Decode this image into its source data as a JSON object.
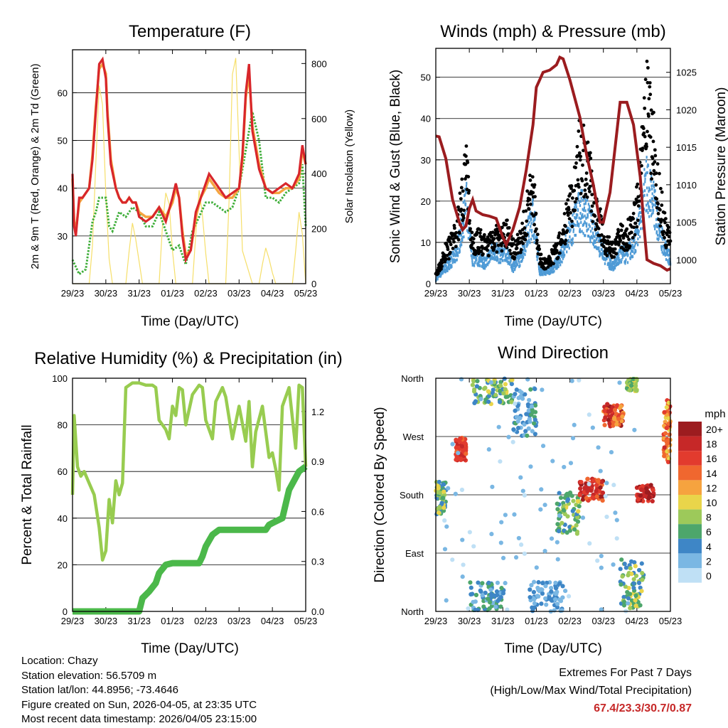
{
  "days": [
    "29/23",
    "30/23",
    "31/23",
    "01/23",
    "02/23",
    "03/23",
    "04/23",
    "05/23"
  ],
  "colors": {
    "t2m": "#d8262b",
    "t9m": "#f5a540",
    "td": "#3fae3a",
    "solar": "#f6df6a",
    "gust": "#000000",
    "wind": "#4f9bd6",
    "pressure": "#9b1c1f",
    "rh": "#98cc50",
    "rain": "#4bb84a",
    "grid": "#000000",
    "extreme": "#c62828"
  },
  "chart_data": [
    {
      "id": "temperature",
      "type": "line",
      "title": "Temperature (F)",
      "xlabel": "Time (Day/UTC)",
      "ylabel": "2m & 9m T (Red, Orange) & 2m Td (Green)",
      "y2label": "Solar Insolation (Yellow)",
      "xlim": [
        0,
        7
      ],
      "ylim": [
        20,
        69
      ],
      "y2lim": [
        0,
        850
      ],
      "yticks": [
        30,
        40,
        50,
        60
      ],
      "y2ticks": [
        0,
        200,
        400,
        600,
        800
      ],
      "series": [
        {
          "name": "2m T",
          "x": [
            0,
            0.05,
            0.1,
            0.2,
            0.3,
            0.5,
            0.6,
            0.7,
            0.8,
            0.9,
            1.0,
            1.05,
            1.15,
            1.3,
            1.4,
            1.5,
            1.6,
            1.7,
            1.8,
            1.9,
            2.0,
            2.2,
            2.4,
            2.6,
            2.8,
            3.0,
            3.1,
            3.2,
            3.3,
            3.4,
            3.55,
            3.7,
            3.85,
            4.0,
            4.1,
            4.2,
            4.4,
            4.6,
            4.8,
            5.0,
            5.1,
            5.2,
            5.3,
            5.4,
            5.6,
            5.8,
            6.0,
            6.2,
            6.4,
            6.6,
            6.8,
            6.9,
            7.0
          ],
          "y": [
            43,
            32,
            30,
            38,
            38,
            40,
            46,
            56,
            66,
            67,
            63,
            55,
            45,
            40,
            38,
            37,
            37,
            38,
            37,
            37,
            34,
            33,
            34,
            36,
            33,
            38,
            41,
            38,
            30,
            25,
            27,
            35,
            38,
            41,
            43,
            42,
            40,
            38,
            39,
            40,
            47,
            60,
            66,
            52,
            44,
            40,
            39,
            40,
            41,
            40,
            43,
            49,
            45
          ]
        },
        {
          "name": "9m T",
          "x": [
            0,
            0.05,
            0.1,
            0.2,
            0.3,
            0.5,
            0.6,
            0.7,
            0.8,
            0.9,
            1.0,
            1.05,
            1.15,
            1.3,
            1.4,
            1.5,
            1.6,
            1.7,
            1.8,
            1.9,
            2.0,
            2.2,
            2.4,
            2.6,
            2.8,
            3.0,
            3.1,
            3.2,
            3.3,
            3.4,
            3.55,
            3.7,
            3.85,
            4.0,
            4.1,
            4.2,
            4.4,
            4.6,
            4.8,
            5.0,
            5.1,
            5.2,
            5.3,
            5.4,
            5.6,
            5.8,
            6.0,
            6.2,
            6.4,
            6.6,
            6.8,
            6.9,
            7.0
          ],
          "y": [
            42,
            33,
            31,
            37,
            38,
            40,
            47,
            57,
            65,
            66,
            64,
            56,
            46,
            40,
            38,
            37,
            37,
            38,
            37,
            37,
            35,
            34,
            34,
            36,
            34,
            37,
            40,
            38,
            31,
            26,
            27,
            34,
            38,
            40,
            42,
            41,
            39,
            38,
            38,
            40,
            46,
            59,
            64,
            53,
            45,
            40,
            39,
            39,
            40,
            40,
            42,
            48,
            45
          ]
        },
        {
          "name": "2m Td",
          "x": [
            0,
            0.2,
            0.4,
            0.5,
            0.6,
            0.7,
            0.8,
            1.0,
            1.1,
            1.2,
            1.4,
            1.6,
            1.8,
            2.0,
            2.2,
            2.4,
            2.6,
            2.8,
            3.0,
            3.2,
            3.4,
            3.6,
            3.8,
            4.0,
            4.2,
            4.4,
            4.6,
            4.8,
            5.0,
            5.2,
            5.3,
            5.4,
            5.6,
            5.8,
            6.0,
            6.2,
            6.4,
            6.6,
            6.8,
            6.9,
            7.0
          ],
          "y": [
            25,
            22,
            23,
            28,
            33,
            35,
            38,
            38,
            32,
            31,
            35,
            34,
            36,
            35,
            32,
            32,
            35,
            31,
            27,
            28,
            24,
            31,
            34,
            37,
            37,
            36,
            35,
            36,
            40,
            48,
            52,
            56,
            50,
            38,
            38,
            37,
            39,
            40,
            41,
            45,
            32
          ]
        },
        {
          "name": "Solar",
          "x": [
            0,
            0.5,
            0.6,
            0.7,
            0.8,
            0.9,
            1.0,
            1.1,
            1.2,
            1.4,
            1.6,
            1.7,
            1.8,
            1.9,
            2.0,
            2.1,
            2.4,
            2.6,
            2.7,
            2.8,
            2.9,
            3.0,
            3.1,
            3.5,
            3.6,
            3.7,
            3.8,
            3.9,
            4.0,
            4.1,
            4.5,
            4.6,
            4.7,
            4.8,
            4.9,
            5.0,
            5.1,
            5.4,
            5.5,
            5.6,
            5.7,
            5.8,
            5.9,
            6.0,
            6.1,
            6.5,
            6.6,
            6.7,
            6.8,
            6.9,
            7.0
          ],
          "y": [
            0,
            0,
            140,
            440,
            720,
            650,
            320,
            90,
            0,
            0,
            0,
            120,
            220,
            160,
            80,
            0,
            0,
            0,
            210,
            330,
            290,
            120,
            0,
            0,
            0,
            180,
            340,
            250,
            110,
            0,
            0,
            0,
            300,
            760,
            820,
            480,
            120,
            0,
            0,
            0,
            70,
            130,
            90,
            40,
            0,
            0,
            0,
            120,
            260,
            180,
            0
          ]
        }
      ]
    },
    {
      "id": "winds",
      "type": "scatter",
      "title": "Winds (mph) & Pressure (mb)",
      "xlabel": "Time (Day/UTC)",
      "ylabel": "Sonic Wind & Gust (Blue, Black)",
      "y2label": "Station Pressure (Maroon)",
      "xlim": [
        0,
        7
      ],
      "ylim": [
        0,
        57
      ],
      "y2lim": [
        996.8,
        1028.2
      ],
      "yticks": [
        0,
        10,
        20,
        30,
        40,
        50
      ],
      "y2ticks": [
        1000,
        1005,
        1010,
        1015,
        1020,
        1025
      ],
      "wind_x": [
        0,
        0.3,
        0.6,
        0.8,
        0.9,
        1.0,
        1.1,
        1.3,
        1.5,
        1.7,
        1.9,
        2.1,
        2.3,
        2.5,
        2.7,
        2.9,
        3.1,
        3.3,
        3.5,
        3.7,
        3.9,
        4.1,
        4.3,
        4.5,
        4.7,
        4.9,
        5.1,
        5.3,
        5.5,
        5.7,
        5.9,
        6.1,
        6.3,
        6.5,
        6.7,
        6.9,
        7.0
      ],
      "wind_y": [
        1,
        4,
        7,
        14,
        20,
        12,
        6,
        6,
        5,
        8,
        7,
        8,
        4,
        6,
        11,
        17,
        3,
        3,
        4,
        6,
        10,
        14,
        18,
        16,
        13,
        9,
        6,
        4,
        7,
        7,
        9,
        16,
        25,
        19,
        12,
        7,
        6
      ],
      "gust_y": [
        2,
        8,
        12,
        22,
        30,
        18,
        10,
        11,
        9,
        12,
        11,
        13,
        9,
        10,
        17,
        25,
        6,
        5,
        7,
        10,
        16,
        22,
        34,
        30,
        22,
        15,
        10,
        8,
        12,
        12,
        15,
        26,
        45,
        34,
        20,
        12,
        10
      ],
      "pressure_x": [
        0,
        0.1,
        0.3,
        0.5,
        0.7,
        0.8,
        0.9,
        1.0,
        1.1,
        1.2,
        1.4,
        1.6,
        1.8,
        2.0,
        2.1,
        2.3,
        2.5,
        2.7,
        2.9,
        3.0,
        3.2,
        3.4,
        3.6,
        3.7,
        3.8,
        4.0,
        4.3,
        4.5,
        4.7,
        4.9,
        5.0,
        5.2,
        5.4,
        5.5,
        5.7,
        5.9,
        6.1,
        6.2,
        6.3,
        6.5,
        6.7,
        6.9,
        7.0
      ],
      "pressure_y": [
        1016.5,
        1016.4,
        1013.5,
        1008,
        1005,
        1004,
        1004.5,
        1006.8,
        1008,
        1006.5,
        1006,
        1005.8,
        1005.5,
        1003,
        1002,
        1004,
        1007,
        1012,
        1018,
        1023,
        1025,
        1025.3,
        1026,
        1027,
        1026.8,
        1024,
        1019,
        1014,
        1010,
        1005,
        1005,
        1009,
        1017,
        1021,
        1021,
        1018,
        1011,
        1005,
        1000,
        999.5,
        999.2,
        998.6,
        998.8
      ]
    },
    {
      "id": "humidity",
      "type": "line",
      "title": "Relative Humidity (%) & Precipitation (in)",
      "xlabel": "Time (Day/UTC)",
      "ylabel": "Percent & Total Rainfall",
      "xlim": [
        0,
        7
      ],
      "ylim": [
        0,
        100
      ],
      "y2lim": [
        0,
        1.4
      ],
      "yticks": [
        0,
        20,
        40,
        60,
        80,
        100
      ],
      "y2ticks": [
        0.0,
        0.3,
        0.6,
        0.9,
        1.2
      ],
      "series": [
        {
          "name": "RH",
          "x": [
            0,
            0.05,
            0.15,
            0.25,
            0.35,
            0.5,
            0.65,
            0.8,
            0.9,
            1.0,
            1.1,
            1.2,
            1.3,
            1.4,
            1.5,
            1.6,
            1.7,
            1.8,
            2.0,
            2.2,
            2.4,
            2.5,
            2.6,
            2.7,
            2.8,
            2.9,
            3.0,
            3.1,
            3.2,
            3.3,
            3.4,
            3.6,
            3.8,
            3.9,
            4.0,
            4.2,
            4.3,
            4.5,
            4.6,
            4.8,
            5.0,
            5.2,
            5.3,
            5.4,
            5.5,
            5.7,
            5.9,
            6.0,
            6.1,
            6.2,
            6.3,
            6.5,
            6.7,
            6.8,
            6.9,
            7.0
          ],
          "y": [
            50,
            84,
            62,
            58,
            60,
            55,
            50,
            36,
            22,
            26,
            48,
            38,
            56,
            50,
            55,
            96,
            97,
            98,
            98,
            97,
            97,
            96,
            82,
            80,
            78,
            74,
            88,
            84,
            96,
            95,
            80,
            93,
            97,
            96,
            82,
            74,
            90,
            96,
            92,
            74,
            88,
            73,
            90,
            62,
            77,
            88,
            66,
            68,
            61,
            52,
            88,
            96,
            70,
            97,
            96,
            62
          ]
        },
        {
          "name": "Rain",
          "x": [
            0,
            2.0,
            2.1,
            2.3,
            2.5,
            2.6,
            2.8,
            3.0,
            3.5,
            3.8,
            3.9,
            4.0,
            4.2,
            4.4,
            4.6,
            5.3,
            5.6,
            5.8,
            5.9,
            6.0,
            6.3,
            6.5,
            6.8,
            7.0
          ],
          "y": [
            0,
            0,
            0.08,
            0.12,
            0.17,
            0.23,
            0.28,
            0.29,
            0.29,
            0.29,
            0.33,
            0.39,
            0.46,
            0.49,
            0.49,
            0.49,
            0.49,
            0.49,
            0.52,
            0.53,
            0.56,
            0.73,
            0.84,
            0.87
          ]
        }
      ]
    },
    {
      "id": "direction",
      "type": "scatter",
      "title": "Wind Direction",
      "xlabel": "Time (Day/UTC)",
      "ylabel": "Direction (Colored By Speed)",
      "xlim": [
        0,
        7
      ],
      "ylim": [
        0,
        360
      ],
      "ylabels": [
        "North",
        "East",
        "South",
        "West",
        "North"
      ],
      "ytick_values": [
        0,
        90,
        180,
        270,
        360
      ],
      "clusters": [
        {
          "x": [
            0,
            0.3
          ],
          "d": [
            150,
            200
          ],
          "s": [
            3,
            10
          ]
        },
        {
          "x": [
            0.6,
            0.9
          ],
          "d": [
            232,
            268
          ],
          "s": [
            14,
            18
          ]
        },
        {
          "x": [
            1.1,
            2.3
          ],
          "d": [
            320,
            360
          ],
          "s": [
            4,
            10
          ]
        },
        {
          "x": [
            2.3,
            3.0
          ],
          "d": [
            270,
            345
          ],
          "s": [
            1,
            6
          ]
        },
        {
          "x": [
            3.6,
            4.3
          ],
          "d": [
            120,
            185
          ],
          "s": [
            4,
            10
          ]
        },
        {
          "x": [
            4.3,
            5.0
          ],
          "d": [
            170,
            205
          ],
          "s": [
            14,
            20
          ]
        },
        {
          "x": [
            5.0,
            5.6
          ],
          "d": [
            285,
            320
          ],
          "s": [
            12,
            20
          ]
        },
        {
          "x": [
            5.7,
            6.0
          ],
          "d": [
            340,
            360
          ],
          "s": [
            6,
            10
          ]
        },
        {
          "x": [
            6.0,
            6.5
          ],
          "d": [
            170,
            195
          ],
          "s": [
            16,
            20
          ]
        },
        {
          "x": [
            5.5,
            6.2
          ],
          "d": [
            5,
            80
          ],
          "s": [
            3,
            10
          ]
        },
        {
          "x": [
            1.0,
            2.1
          ],
          "d": [
            0,
            45
          ],
          "s": [
            2,
            7
          ]
        },
        {
          "x": [
            2.8,
            3.8
          ],
          "d": [
            0,
            45
          ],
          "s": [
            1,
            5
          ]
        },
        {
          "x": [
            6.8,
            7.0
          ],
          "d": [
            230,
            330
          ],
          "s": [
            10,
            18
          ]
        },
        {
          "x": [
            0,
            6.0
          ],
          "d": [
            0,
            360
          ],
          "s": [
            0,
            3
          ]
        }
      ],
      "legend": {
        "title": "mph",
        "labels": [
          "20+",
          "18",
          "16",
          "14",
          "12",
          "10",
          "8",
          "6",
          "4",
          "2",
          "0"
        ],
        "colors": [
          "#9c1c1f",
          "#c62828",
          "#e23b2e",
          "#f0672f",
          "#f6a33f",
          "#e9d54a",
          "#9dc95a",
          "#4da66b",
          "#3e86c6",
          "#7ab7e3",
          "#bfe0f5"
        ]
      }
    }
  ],
  "info": {
    "location": "Location: Chazy",
    "elevation": "Station elevation: 56.5709 m",
    "latlon": "Station lat/lon: 44.8956; -73.4646",
    "created": "Figure created on Sun, 2026-04-05, at 23:35 UTC",
    "recent": "Most recent data timestamp: 2026/04/05 23:15:00"
  },
  "extremes": {
    "title": "Extremes For Past 7 Days",
    "subtitle": "(High/Low/Max Wind/Total Precipitation)",
    "values": "67.4/23.3/30.7/0.87"
  }
}
